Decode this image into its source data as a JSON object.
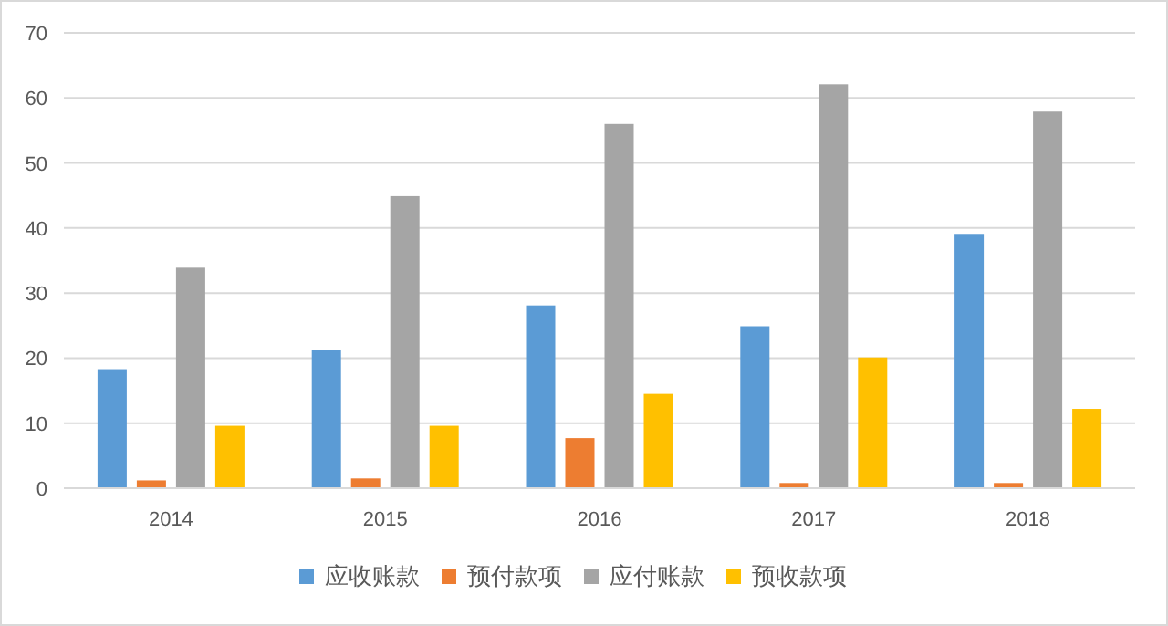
{
  "chart_data": {
    "type": "bar",
    "categories": [
      "2014",
      "2015",
      "2016",
      "2017",
      "2018"
    ],
    "series": [
      {
        "name": "应收账款",
        "color": "#5b9bd5",
        "values": [
          18.3,
          21.2,
          28.1,
          24.9,
          39.1
        ]
      },
      {
        "name": "预付款项",
        "color": "#ed7d31",
        "values": [
          1.2,
          1.5,
          7.7,
          0.8,
          0.8
        ]
      },
      {
        "name": "应付账款",
        "color": "#a5a5a5",
        "values": [
          33.9,
          44.9,
          56.0,
          62.1,
          57.9
        ]
      },
      {
        "name": "预收款项",
        "color": "#ffc000",
        "values": [
          9.6,
          9.6,
          14.5,
          20.1,
          12.2
        ]
      }
    ],
    "ylim": [
      0,
      70
    ],
    "yticks": [
      0,
      10,
      20,
      30,
      40,
      50,
      60,
      70
    ],
    "grid": "y",
    "legend": "bottom"
  }
}
